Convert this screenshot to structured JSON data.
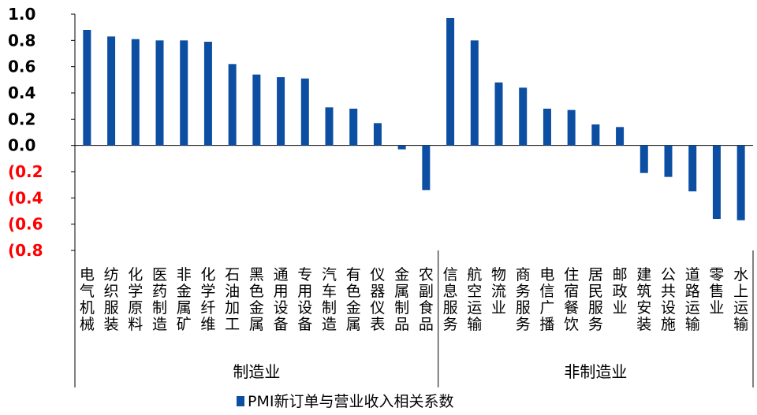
{
  "chart_data": {
    "type": "bar",
    "categories": [
      "电气机械",
      "纺织服装",
      "化学原料",
      "医药制造",
      "非金属矿",
      "化学纤维",
      "石油加工",
      "黑色金属",
      "通用设备",
      "专用设备",
      "汽车制造",
      "有色金属",
      "仪器仪表",
      "金属制品",
      "农副食品",
      "信息服务",
      "航空运输",
      "物流业",
      "商务服务",
      "电信广播",
      "住宿餐饮",
      "居民服务",
      "邮政业",
      "建筑安装",
      "公共设施",
      "道路运输",
      "零售业",
      "水上运输"
    ],
    "series": [
      {
        "name": "PMI新订单与营业收入相关系数",
        "values": [
          0.88,
          0.83,
          0.81,
          0.8,
          0.8,
          0.79,
          0.62,
          0.54,
          0.52,
          0.51,
          0.29,
          0.28,
          0.17,
          -0.03,
          -0.34,
          0.97,
          0.8,
          0.48,
          0.44,
          0.28,
          0.27,
          0.16,
          0.14,
          -0.21,
          -0.24,
          -0.35,
          -0.56,
          -0.57
        ]
      }
    ],
    "groups": [
      {
        "label": "制造业",
        "start": 0,
        "end": 14
      },
      {
        "label": "非制造业",
        "start": 15,
        "end": 27
      }
    ],
    "y_ticks": [
      {
        "value": 1.0,
        "label": "1.0"
      },
      {
        "value": 0.8,
        "label": "0.8"
      },
      {
        "value": 0.6,
        "label": "0.6"
      },
      {
        "value": 0.4,
        "label": "0.4"
      },
      {
        "value": 0.2,
        "label": "0.2"
      },
      {
        "value": 0.0,
        "label": "0.0"
      },
      {
        "value": -0.2,
        "label": "(0.2"
      },
      {
        "value": -0.4,
        "label": "(0.4"
      },
      {
        "value": -0.6,
        "label": "(0.6"
      },
      {
        "value": -0.8,
        "label": "(0.8"
      }
    ],
    "ylim": [
      -0.8,
      1.0
    ],
    "grid": false,
    "legend_position": "bottom",
    "colors": {
      "bar": "#0b4ea2",
      "negative_tick": "#ff0000",
      "positive_tick": "#000000",
      "axis": "#000000"
    }
  }
}
